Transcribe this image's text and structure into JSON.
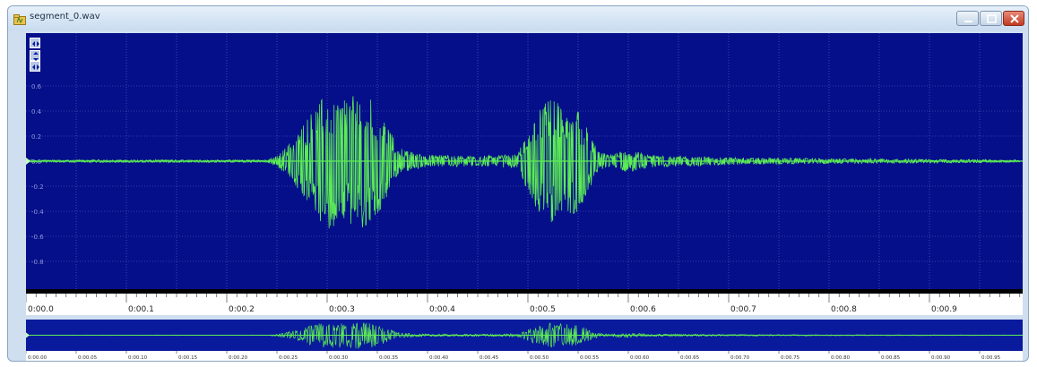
{
  "window": {
    "title": "segment_0.wav",
    "icon": "audio-file-icon",
    "controls": [
      "minimize-icon",
      "maximize-icon",
      "close-icon"
    ]
  },
  "colors": {
    "waveform": "#5dec55",
    "background": "#050f8a",
    "grid": "#5f6fc2",
    "axis_text": "#8d96d4"
  },
  "toolbar_icons": [
    "zoom-horizontal-icon",
    "zoom-vertical-icon",
    "zoom-fit-icon"
  ],
  "amplitude_labels": [
    "0.6",
    "0.4",
    "0.2",
    "0.0",
    "-0.2",
    "-0.4",
    "-0.6",
    "-0.8"
  ],
  "timeline_labels": [
    "0:00.0",
    "0:00.1",
    "0:00.2",
    "0:00.3",
    "0:00.4",
    "0:00.5",
    "0:00.6",
    "0:00.7",
    "0:00.8",
    "0:00.9"
  ],
  "overview_labels": [
    "0:00.00",
    "0:00.05",
    "0:00.10",
    "0:00.15",
    "0:00.20",
    "0:00.25",
    "0:00.30",
    "0:00.35",
    "0:00.40",
    "0:00.45",
    "0:00.50",
    "0:00.55",
    "0:00.60",
    "0:00.65",
    "0:00.70",
    "0:00.75",
    "0:00.80",
    "0:00.85",
    "0:00.90",
    "0:00.95"
  ],
  "waveform_envelope": {
    "duration": 0.99,
    "points": [
      [
        0.0,
        0.01
      ],
      [
        0.24,
        0.01
      ],
      [
        0.25,
        0.04
      ],
      [
        0.26,
        0.12
      ],
      [
        0.27,
        0.22
      ],
      [
        0.28,
        0.35
      ],
      [
        0.29,
        0.45
      ],
      [
        0.3,
        0.55
      ],
      [
        0.31,
        0.5
      ],
      [
        0.32,
        0.48
      ],
      [
        0.33,
        0.55
      ],
      [
        0.34,
        0.52
      ],
      [
        0.35,
        0.45
      ],
      [
        0.36,
        0.3
      ],
      [
        0.37,
        0.12
      ],
      [
        0.38,
        0.08
      ],
      [
        0.4,
        0.05
      ],
      [
        0.45,
        0.04
      ],
      [
        0.49,
        0.06
      ],
      [
        0.5,
        0.25
      ],
      [
        0.51,
        0.4
      ],
      [
        0.52,
        0.5
      ],
      [
        0.53,
        0.48
      ],
      [
        0.54,
        0.45
      ],
      [
        0.55,
        0.4
      ],
      [
        0.56,
        0.25
      ],
      [
        0.57,
        0.08
      ],
      [
        0.58,
        0.05
      ],
      [
        0.6,
        0.09
      ],
      [
        0.62,
        0.05
      ],
      [
        0.7,
        0.03
      ],
      [
        0.8,
        0.02
      ],
      [
        0.9,
        0.015
      ],
      [
        0.99,
        0.01
      ]
    ]
  }
}
